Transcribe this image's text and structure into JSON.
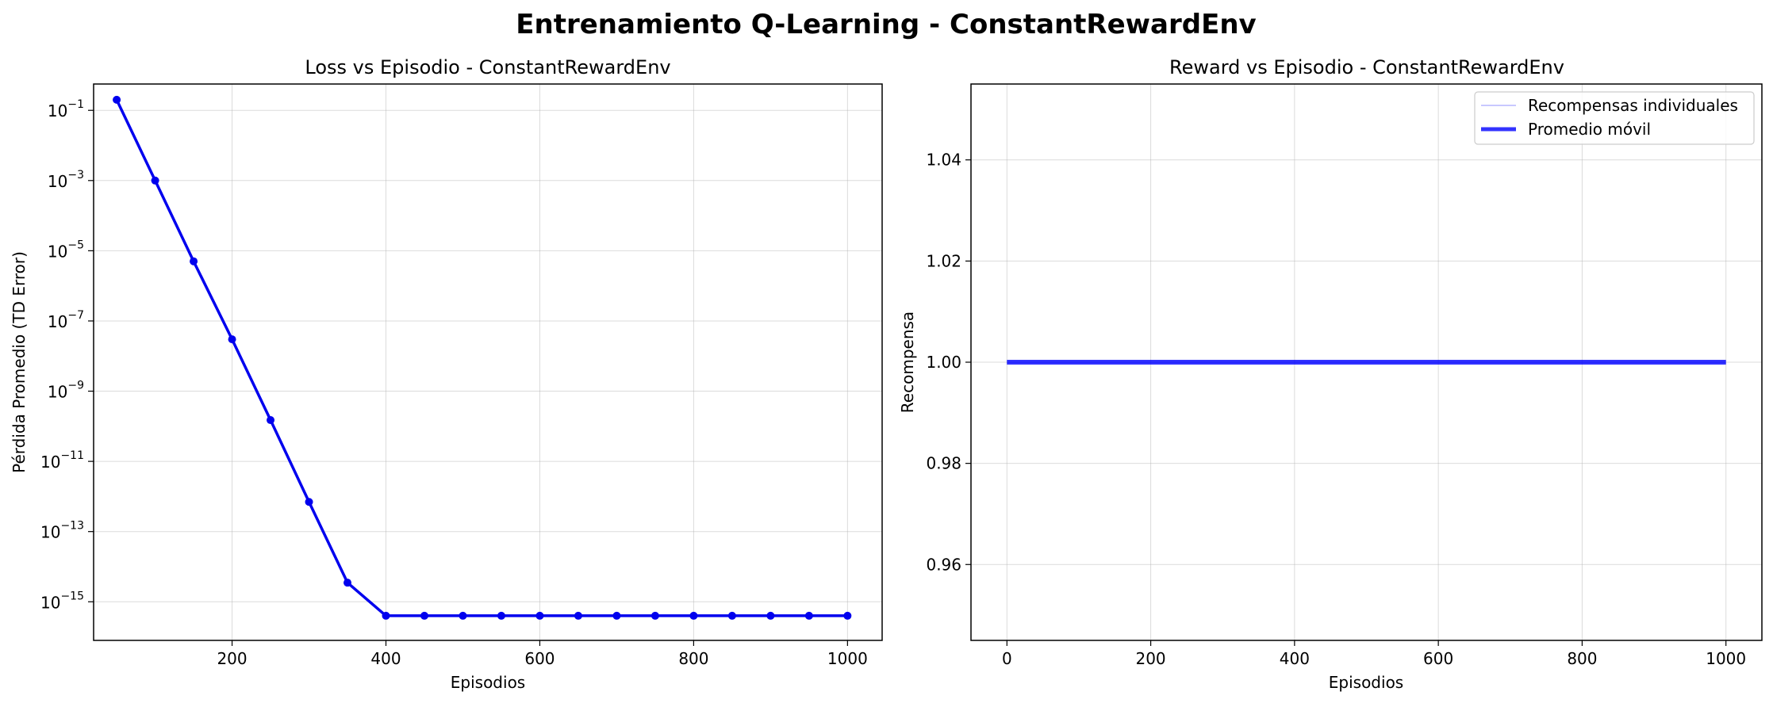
{
  "figure": {
    "title": "Entrenamiento Q-Learning - ConstantRewardEnv"
  },
  "chart_data": [
    {
      "type": "line",
      "title": "Loss vs Episodio - ConstantRewardEnv",
      "xlabel": "Episodios",
      "ylabel": "Pérdida Promedio (TD Error)",
      "yscale": "log",
      "xlim": [
        20,
        1045
      ],
      "ylim_exp": [
        -16.1,
        -0.25
      ],
      "xticks": [
        200,
        400,
        600,
        800,
        1000
      ],
      "yticks_exp": [
        -1,
        -3,
        -5,
        -7,
        -9,
        -11,
        -13,
        -15
      ],
      "ytick_base": "10",
      "grid": true,
      "series": [
        {
          "color": "#0000ee",
          "marker": "circle",
          "x": [
            50,
            100,
            150,
            200,
            250,
            300,
            350,
            400,
            450,
            500,
            550,
            600,
            650,
            700,
            750,
            800,
            850,
            900,
            950,
            1000
          ],
          "y": [
            0.2,
            0.001,
            5e-06,
            3e-08,
            1.5e-10,
            7e-13,
            3.5e-15,
            4e-16,
            4e-16,
            4e-16,
            4e-16,
            4e-16,
            4e-16,
            4e-16,
            4e-16,
            4e-16,
            4e-16,
            4e-16,
            4e-16,
            4e-16
          ]
        }
      ]
    },
    {
      "type": "line",
      "title": "Reward vs Episodio - ConstantRewardEnv",
      "xlabel": "Episodios",
      "ylabel": "Recompensa",
      "xlim": [
        -50,
        1050
      ],
      "ylim": [
        0.945,
        1.055
      ],
      "xticks": [
        0,
        200,
        400,
        600,
        800,
        1000
      ],
      "yticks": [
        0.96,
        0.98,
        1.0,
        1.02,
        1.04
      ],
      "ytick_labels": [
        "0.96",
        "0.98",
        "1.00",
        "1.02",
        "1.04"
      ],
      "grid": true,
      "legend_position": "top-right",
      "series": [
        {
          "name": "Recompensas individuales",
          "color": "#0000ff",
          "opacity": 0.35,
          "x": [
            0,
            1000
          ],
          "y": [
            1.0,
            1.0
          ]
        },
        {
          "name": "Promedio móvil",
          "color": "#0000ff",
          "opacity": 0.8,
          "x": [
            0,
            1000
          ],
          "y": [
            1.0,
            1.0
          ]
        }
      ]
    }
  ]
}
